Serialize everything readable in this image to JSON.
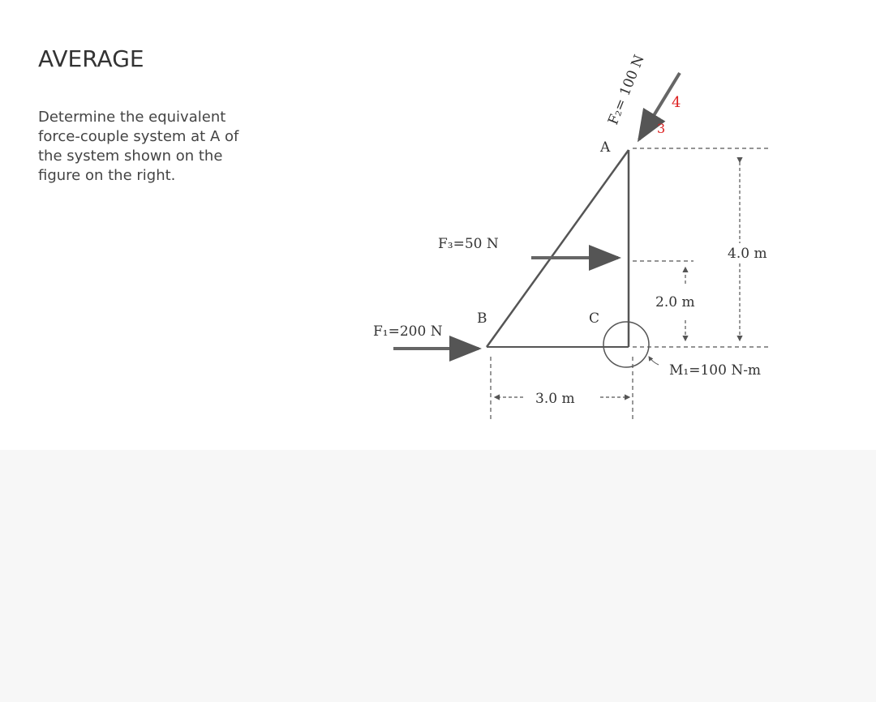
{
  "header": {
    "title": "AVERAGE"
  },
  "problem": {
    "lines": [
      "Determine the equivalent",
      "force-couple system at A of",
      "the system shown on the",
      "figure on the right."
    ]
  },
  "figure": {
    "labels": {
      "a": "A",
      "b": "B",
      "c": "C"
    },
    "forces": {
      "f1": "F₁=200 N",
      "f2": "F₂= 100 N",
      "f3": "F₃=50 N",
      "m1": "M₁=100 N-m"
    },
    "dimensions": {
      "height_total": "4.0 m",
      "height_half": "2.0 m",
      "width": "3.0 m"
    },
    "slope": {
      "rise": "4",
      "run": "3"
    }
  }
}
